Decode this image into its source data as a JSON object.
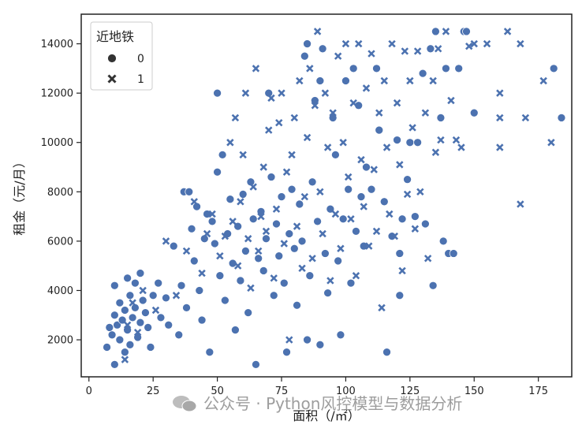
{
  "chart_data": {
    "type": "scatter",
    "xlabel": "面积（/㎡）",
    "ylabel": "租金（元/月）",
    "xlim": [
      -3,
      188
    ],
    "ylim": [
      500,
      15200
    ],
    "xticks": [
      0,
      25,
      50,
      75,
      100,
      125,
      150,
      175
    ],
    "yticks": [
      2000,
      4000,
      6000,
      8000,
      10000,
      12000,
      14000
    ],
    "grid": false,
    "legend": {
      "title": "近地铁",
      "placement": "top-left",
      "entries": [
        {
          "label": "0",
          "marker": "circle"
        },
        {
          "label": "1",
          "marker": "x"
        }
      ]
    },
    "color": "#4c72b0",
    "series": [
      {
        "name": "0",
        "marker": "circle",
        "points": [
          [
            7,
            1700
          ],
          [
            8,
            2500
          ],
          [
            9,
            2200
          ],
          [
            10,
            1000
          ],
          [
            10,
            3000
          ],
          [
            10,
            4200
          ],
          [
            11,
            2600
          ],
          [
            12,
            3500
          ],
          [
            12,
            2000
          ],
          [
            13,
            2800
          ],
          [
            14,
            3200
          ],
          [
            14,
            1500
          ],
          [
            15,
            4500
          ],
          [
            15,
            2400
          ],
          [
            16,
            3800
          ],
          [
            16,
            1800
          ],
          [
            17,
            2900
          ],
          [
            18,
            4300
          ],
          [
            18,
            3300
          ],
          [
            19,
            2100
          ],
          [
            20,
            4700
          ],
          [
            20,
            2700
          ],
          [
            21,
            3600
          ],
          [
            22,
            3100
          ],
          [
            23,
            2500
          ],
          [
            24,
            1700
          ],
          [
            25,
            3800
          ],
          [
            27,
            4300
          ],
          [
            28,
            2900
          ],
          [
            30,
            3700
          ],
          [
            31,
            2600
          ],
          [
            33,
            5800
          ],
          [
            35,
            2200
          ],
          [
            36,
            4200
          ],
          [
            37,
            8000
          ],
          [
            38,
            3300
          ],
          [
            39,
            8000
          ],
          [
            40,
            6500
          ],
          [
            41,
            5200
          ],
          [
            42,
            7400
          ],
          [
            43,
            4000
          ],
          [
            44,
            2800
          ],
          [
            45,
            6100
          ],
          [
            46,
            7100
          ],
          [
            47,
            1500
          ],
          [
            48,
            6800
          ],
          [
            49,
            5900
          ],
          [
            50,
            12000
          ],
          [
            50,
            8800
          ],
          [
            51,
            4600
          ],
          [
            52,
            9500
          ],
          [
            53,
            3600
          ],
          [
            54,
            6300
          ],
          [
            55,
            7700
          ],
          [
            56,
            5100
          ],
          [
            57,
            2400
          ],
          [
            58,
            6600
          ],
          [
            59,
            4400
          ],
          [
            60,
            7900
          ],
          [
            61,
            5600
          ],
          [
            62,
            3100
          ],
          [
            63,
            8400
          ],
          [
            64,
            6900
          ],
          [
            65,
            1000
          ],
          [
            66,
            5300
          ],
          [
            67,
            7200
          ],
          [
            68,
            4800
          ],
          [
            69,
            6100
          ],
          [
            70,
            12000
          ],
          [
            71,
            8600
          ],
          [
            72,
            3800
          ],
          [
            73,
            6700
          ],
          [
            74,
            5400
          ],
          [
            75,
            7800
          ],
          [
            76,
            4300
          ],
          [
            77,
            1500
          ],
          [
            78,
            6300
          ],
          [
            79,
            8100
          ],
          [
            80,
            5700
          ],
          [
            81,
            3400
          ],
          [
            82,
            7500
          ],
          [
            83,
            6000
          ],
          [
            84,
            13500
          ],
          [
            85,
            14000
          ],
          [
            85,
            2000
          ],
          [
            86,
            4600
          ],
          [
            87,
            8400
          ],
          [
            88,
            11700
          ],
          [
            89,
            6800
          ],
          [
            90,
            12500
          ],
          [
            90,
            1800
          ],
          [
            91,
            13800
          ],
          [
            92,
            5500
          ],
          [
            93,
            3900
          ],
          [
            94,
            7300
          ],
          [
            95,
            11000
          ],
          [
            96,
            9500
          ],
          [
            97,
            5200
          ],
          [
            98,
            2200
          ],
          [
            99,
            6900
          ],
          [
            100,
            12500
          ],
          [
            101,
            8100
          ],
          [
            102,
            4300
          ],
          [
            103,
            13000
          ],
          [
            104,
            6400
          ],
          [
            105,
            11500
          ],
          [
            106,
            7800
          ],
          [
            107,
            5800
          ],
          [
            108,
            9000
          ],
          [
            110,
            8100
          ],
          [
            112,
            13000
          ],
          [
            113,
            10500
          ],
          [
            115,
            7600
          ],
          [
            116,
            1500
          ],
          [
            118,
            6200
          ],
          [
            120,
            10100
          ],
          [
            121,
            5500
          ],
          [
            121,
            3800
          ],
          [
            122,
            6900
          ],
          [
            124,
            8500
          ],
          [
            125,
            10000
          ],
          [
            127,
            7000
          ],
          [
            128,
            10000
          ],
          [
            130,
            12800
          ],
          [
            131,
            6700
          ],
          [
            133,
            13800
          ],
          [
            134,
            4200
          ],
          [
            135,
            14500
          ],
          [
            137,
            11000
          ],
          [
            138,
            6000
          ],
          [
            139,
            13000
          ],
          [
            140,
            5500
          ],
          [
            142,
            5500
          ],
          [
            144,
            13000
          ],
          [
            146,
            14500
          ],
          [
            147,
            14500
          ],
          [
            150,
            11200
          ],
          [
            181,
            13000
          ],
          [
            184,
            11000
          ]
        ]
      },
      {
        "name": "1",
        "marker": "x",
        "points": [
          [
            14,
            1200
          ],
          [
            15,
            2600
          ],
          [
            17,
            3500
          ],
          [
            19,
            2300
          ],
          [
            21,
            4000
          ],
          [
            26,
            3200
          ],
          [
            30,
            6000
          ],
          [
            34,
            3800
          ],
          [
            38,
            5600
          ],
          [
            41,
            7600
          ],
          [
            44,
            4700
          ],
          [
            46,
            6300
          ],
          [
            48,
            7100
          ],
          [
            51,
            5400
          ],
          [
            53,
            6200
          ],
          [
            55,
            10000
          ],
          [
            56,
            6800
          ],
          [
            57,
            11000
          ],
          [
            58,
            5000
          ],
          [
            59,
            7600
          ],
          [
            60,
            9500
          ],
          [
            61,
            12000
          ],
          [
            62,
            6100
          ],
          [
            63,
            4100
          ],
          [
            64,
            8200
          ],
          [
            65,
            13000
          ],
          [
            66,
            5600
          ],
          [
            67,
            7000
          ],
          [
            68,
            9000
          ],
          [
            69,
            6400
          ],
          [
            70,
            10500
          ],
          [
            71,
            11800
          ],
          [
            72,
            4500
          ],
          [
            73,
            7300
          ],
          [
            74,
            10800
          ],
          [
            75,
            12000
          ],
          [
            76,
            5900
          ],
          [
            77,
            8800
          ],
          [
            78,
            2000
          ],
          [
            79,
            9500
          ],
          [
            80,
            11000
          ],
          [
            81,
            6600
          ],
          [
            82,
            12500
          ],
          [
            83,
            4900
          ],
          [
            84,
            7800
          ],
          [
            85,
            10200
          ],
          [
            86,
            13000
          ],
          [
            87,
            5300
          ],
          [
            88,
            11500
          ],
          [
            89,
            14500
          ],
          [
            90,
            8000
          ],
          [
            91,
            6300
          ],
          [
            92,
            12000
          ],
          [
            93,
            9800
          ],
          [
            94,
            4400
          ],
          [
            95,
            11200
          ],
          [
            96,
            7100
          ],
          [
            97,
            13500
          ],
          [
            98,
            5700
          ],
          [
            99,
            10000
          ],
          [
            100,
            14000
          ],
          [
            101,
            8600
          ],
          [
            102,
            6900
          ],
          [
            103,
            11600
          ],
          [
            104,
            4600
          ],
          [
            105,
            14000
          ],
          [
            106,
            9300
          ],
          [
            107,
            7400
          ],
          [
            108,
            12200
          ],
          [
            109,
            5800
          ],
          [
            110,
            13600
          ],
          [
            111,
            8900
          ],
          [
            112,
            6400
          ],
          [
            113,
            11200
          ],
          [
            114,
            3300
          ],
          [
            115,
            12500
          ],
          [
            116,
            9800
          ],
          [
            117,
            7100
          ],
          [
            118,
            14000
          ],
          [
            119,
            6200
          ],
          [
            120,
            11600
          ],
          [
            121,
            9100
          ],
          [
            122,
            4800
          ],
          [
            123,
            13700
          ],
          [
            124,
            7900
          ],
          [
            125,
            12500
          ],
          [
            126,
            10600
          ],
          [
            127,
            6500
          ],
          [
            128,
            13700
          ],
          [
            129,
            8000
          ],
          [
            131,
            11200
          ],
          [
            132,
            5300
          ],
          [
            134,
            12500
          ],
          [
            135,
            9600
          ],
          [
            136,
            13800
          ],
          [
            137,
            10100
          ],
          [
            139,
            14500
          ],
          [
            141,
            11700
          ],
          [
            143,
            10100
          ],
          [
            145,
            9800
          ],
          [
            148,
            13900
          ],
          [
            150,
            14000
          ],
          [
            155,
            14000
          ],
          [
            160,
            12000
          ],
          [
            160,
            11000
          ],
          [
            160,
            9800
          ],
          [
            163,
            14500
          ],
          [
            168,
            14000
          ],
          [
            168,
            7500
          ],
          [
            170,
            11000
          ],
          [
            177,
            12500
          ],
          [
            180,
            10000
          ]
        ]
      }
    ]
  },
  "watermark": {
    "text": "公众号 · Python风控模型与数据分析",
    "icon": "wechat-icon"
  }
}
